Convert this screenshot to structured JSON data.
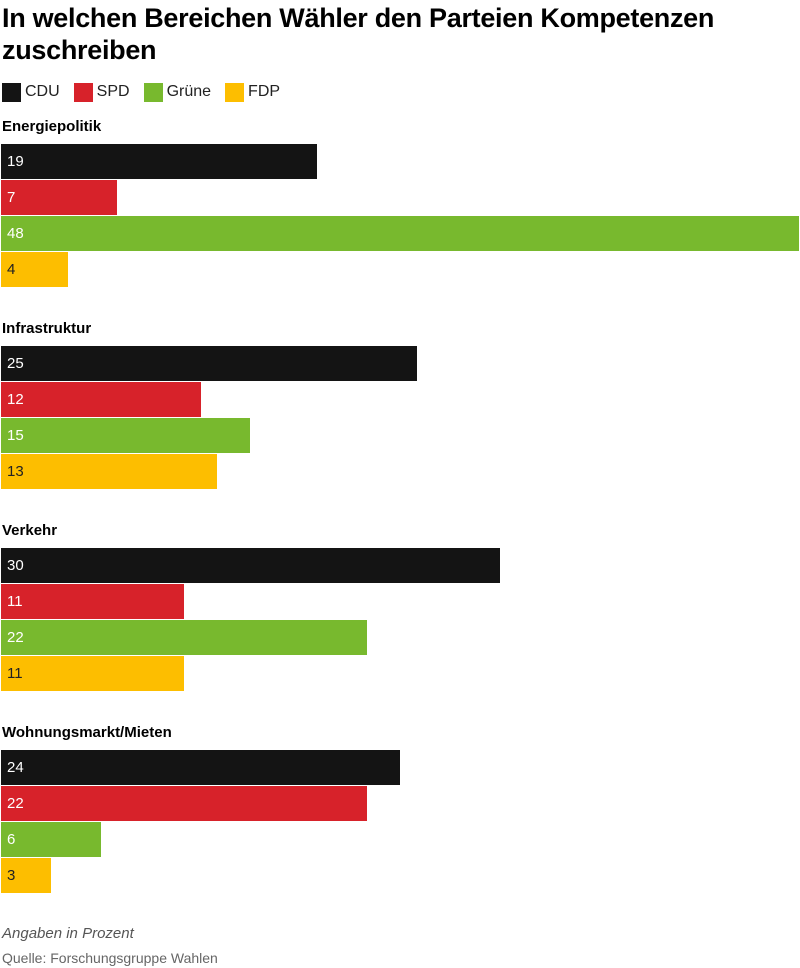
{
  "title": "In welchen Bereichen Wähler den Parteien Kompetenzen zuschreiben",
  "legend": [
    {
      "label": "CDU",
      "color": "#141414"
    },
    {
      "label": "SPD",
      "color": "#d7222a"
    },
    {
      "label": "Grüne",
      "color": "#78b92e"
    },
    {
      "label": "FDP",
      "color": "#fdbe00"
    }
  ],
  "chart_data": {
    "type": "bar",
    "orientation": "horizontal",
    "title": "In welchen Bereichen Wähler den Parteien Kompetenzen zuschreiben",
    "categories": [
      "Energiepolitik",
      "Infrastruktur",
      "Verkehr",
      "Wohnungsmarkt/Mieten"
    ],
    "series": [
      {
        "name": "CDU",
        "color": "#141414",
        "values": [
          19,
          25,
          30,
          24
        ]
      },
      {
        "name": "SPD",
        "color": "#d7222a",
        "values": [
          7,
          12,
          11,
          22
        ]
      },
      {
        "name": "Grüne",
        "color": "#78b92e",
        "values": [
          48,
          15,
          22,
          6
        ]
      },
      {
        "name": "FDP",
        "color": "#fdbe00",
        "values": [
          4,
          13,
          11,
          3
        ]
      }
    ],
    "xlim": [
      0,
      48
    ],
    "grid": false,
    "legend_position": "top-left"
  },
  "footnote": "Angaben in Prozent",
  "source": "Quelle: Forschungsgruppe Wahlen"
}
